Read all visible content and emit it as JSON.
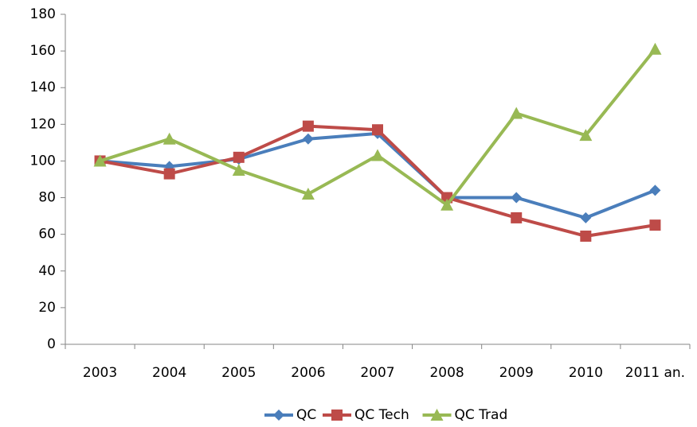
{
  "chart_data": {
    "type": "line",
    "categories": [
      "2003",
      "2004",
      "2005",
      "2006",
      "2007",
      "2008",
      "2009",
      "2010",
      "2011 an."
    ],
    "series": [
      {
        "name": "QC",
        "color": "#4a7ebb",
        "marker": "diamond",
        "values": [
          100,
          97,
          101,
          112,
          115,
          80,
          80,
          69,
          84
        ]
      },
      {
        "name": "QC Tech",
        "color": "#be4b48",
        "marker": "square",
        "values": [
          100,
          93,
          102,
          119,
          117,
          80,
          69,
          59,
          65
        ]
      },
      {
        "name": "QC Trad",
        "color": "#98b954",
        "marker": "triangle",
        "values": [
          100,
          112,
          95,
          82,
          103,
          76,
          126,
          114,
          161
        ]
      }
    ],
    "ylim": [
      0,
      180
    ],
    "yticks": [
      0,
      20,
      40,
      60,
      80,
      100,
      120,
      140,
      160,
      180
    ],
    "grid": false,
    "legend": "bottom"
  }
}
